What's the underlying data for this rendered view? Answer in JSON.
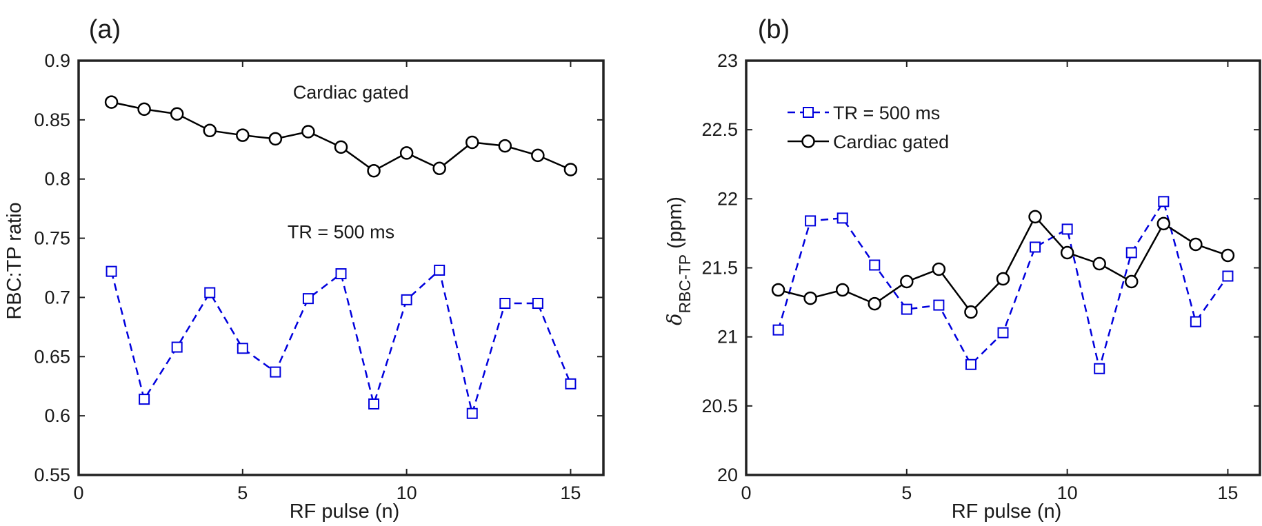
{
  "chart_data": [
    {
      "type": "line",
      "panel_label": "(a)",
      "xlabel": "RF pulse (n)",
      "ylabel": "RBC:TP ratio",
      "xlim": [
        0,
        16
      ],
      "ylim": [
        0.55,
        0.9
      ],
      "xticks": [
        0,
        5,
        10,
        15
      ],
      "xtick_labels": [
        "0",
        "5",
        "10",
        "15"
      ],
      "yticks": [
        0.55,
        0.6,
        0.65,
        0.7,
        0.75,
        0.8,
        0.85,
        0.9
      ],
      "ytick_labels": [
        "0.55",
        "0.6",
        "0.65",
        "0.7",
        "0.75",
        "0.8",
        "0.85",
        "0.9"
      ],
      "grid": false,
      "annotations": [
        {
          "text": "Cardiac gated",
          "x": 8.3,
          "y": 0.868
        },
        {
          "text": "TR = 500 ms",
          "x": 8.0,
          "y": 0.75
        }
      ],
      "x": [
        1,
        2,
        3,
        4,
        5,
        6,
        7,
        8,
        9,
        10,
        11,
        12,
        13,
        14,
        15
      ],
      "series": [
        {
          "name": "Cardiac gated",
          "color": "#000000",
          "marker": "circle",
          "dash": "solid",
          "values": [
            0.865,
            0.859,
            0.855,
            0.841,
            0.837,
            0.834,
            0.84,
            0.827,
            0.807,
            0.822,
            0.809,
            0.831,
            0.828,
            0.82,
            0.808
          ]
        },
        {
          "name": "TR = 500 ms",
          "color": "#0000dd",
          "marker": "square",
          "dash": "dashed",
          "values": [
            0.722,
            0.614,
            0.658,
            0.704,
            0.657,
            0.637,
            0.699,
            0.72,
            0.61,
            0.698,
            0.723,
            0.602,
            0.695,
            0.695,
            0.627
          ]
        }
      ]
    },
    {
      "type": "line",
      "panel_label": "(b)",
      "xlabel": "RF pulse (n)",
      "ylabel_symbol": "δ",
      "ylabel_subscript": "RBC-TP",
      "ylabel_suffix": " (ppm)",
      "xlim": [
        0,
        16
      ],
      "ylim": [
        20,
        23
      ],
      "xticks": [
        0,
        5,
        10,
        15
      ],
      "xtick_labels": [
        "0",
        "5",
        "10",
        "15"
      ],
      "yticks": [
        20,
        20.5,
        21,
        21.5,
        22,
        22.5,
        23
      ],
      "ytick_labels": [
        "20",
        "20.5",
        "21",
        "21.5",
        "22",
        "22.5",
        "23"
      ],
      "grid": false,
      "legend": "top-left",
      "x": [
        1,
        2,
        3,
        4,
        5,
        6,
        7,
        8,
        9,
        10,
        11,
        12,
        13,
        14,
        15
      ],
      "series": [
        {
          "name": "TR = 500 ms",
          "color": "#0000dd",
          "marker": "square",
          "dash": "dashed",
          "values": [
            21.05,
            21.84,
            21.86,
            21.52,
            21.2,
            21.23,
            20.8,
            21.03,
            21.65,
            21.78,
            20.77,
            21.61,
            21.98,
            21.11,
            21.44
          ]
        },
        {
          "name": "Cardiac gated",
          "color": "#000000",
          "marker": "circle",
          "dash": "solid",
          "values": [
            21.34,
            21.28,
            21.34,
            21.24,
            21.4,
            21.49,
            21.18,
            21.42,
            21.87,
            21.61,
            21.53,
            21.4,
            21.82,
            21.67,
            21.59
          ]
        }
      ]
    }
  ]
}
